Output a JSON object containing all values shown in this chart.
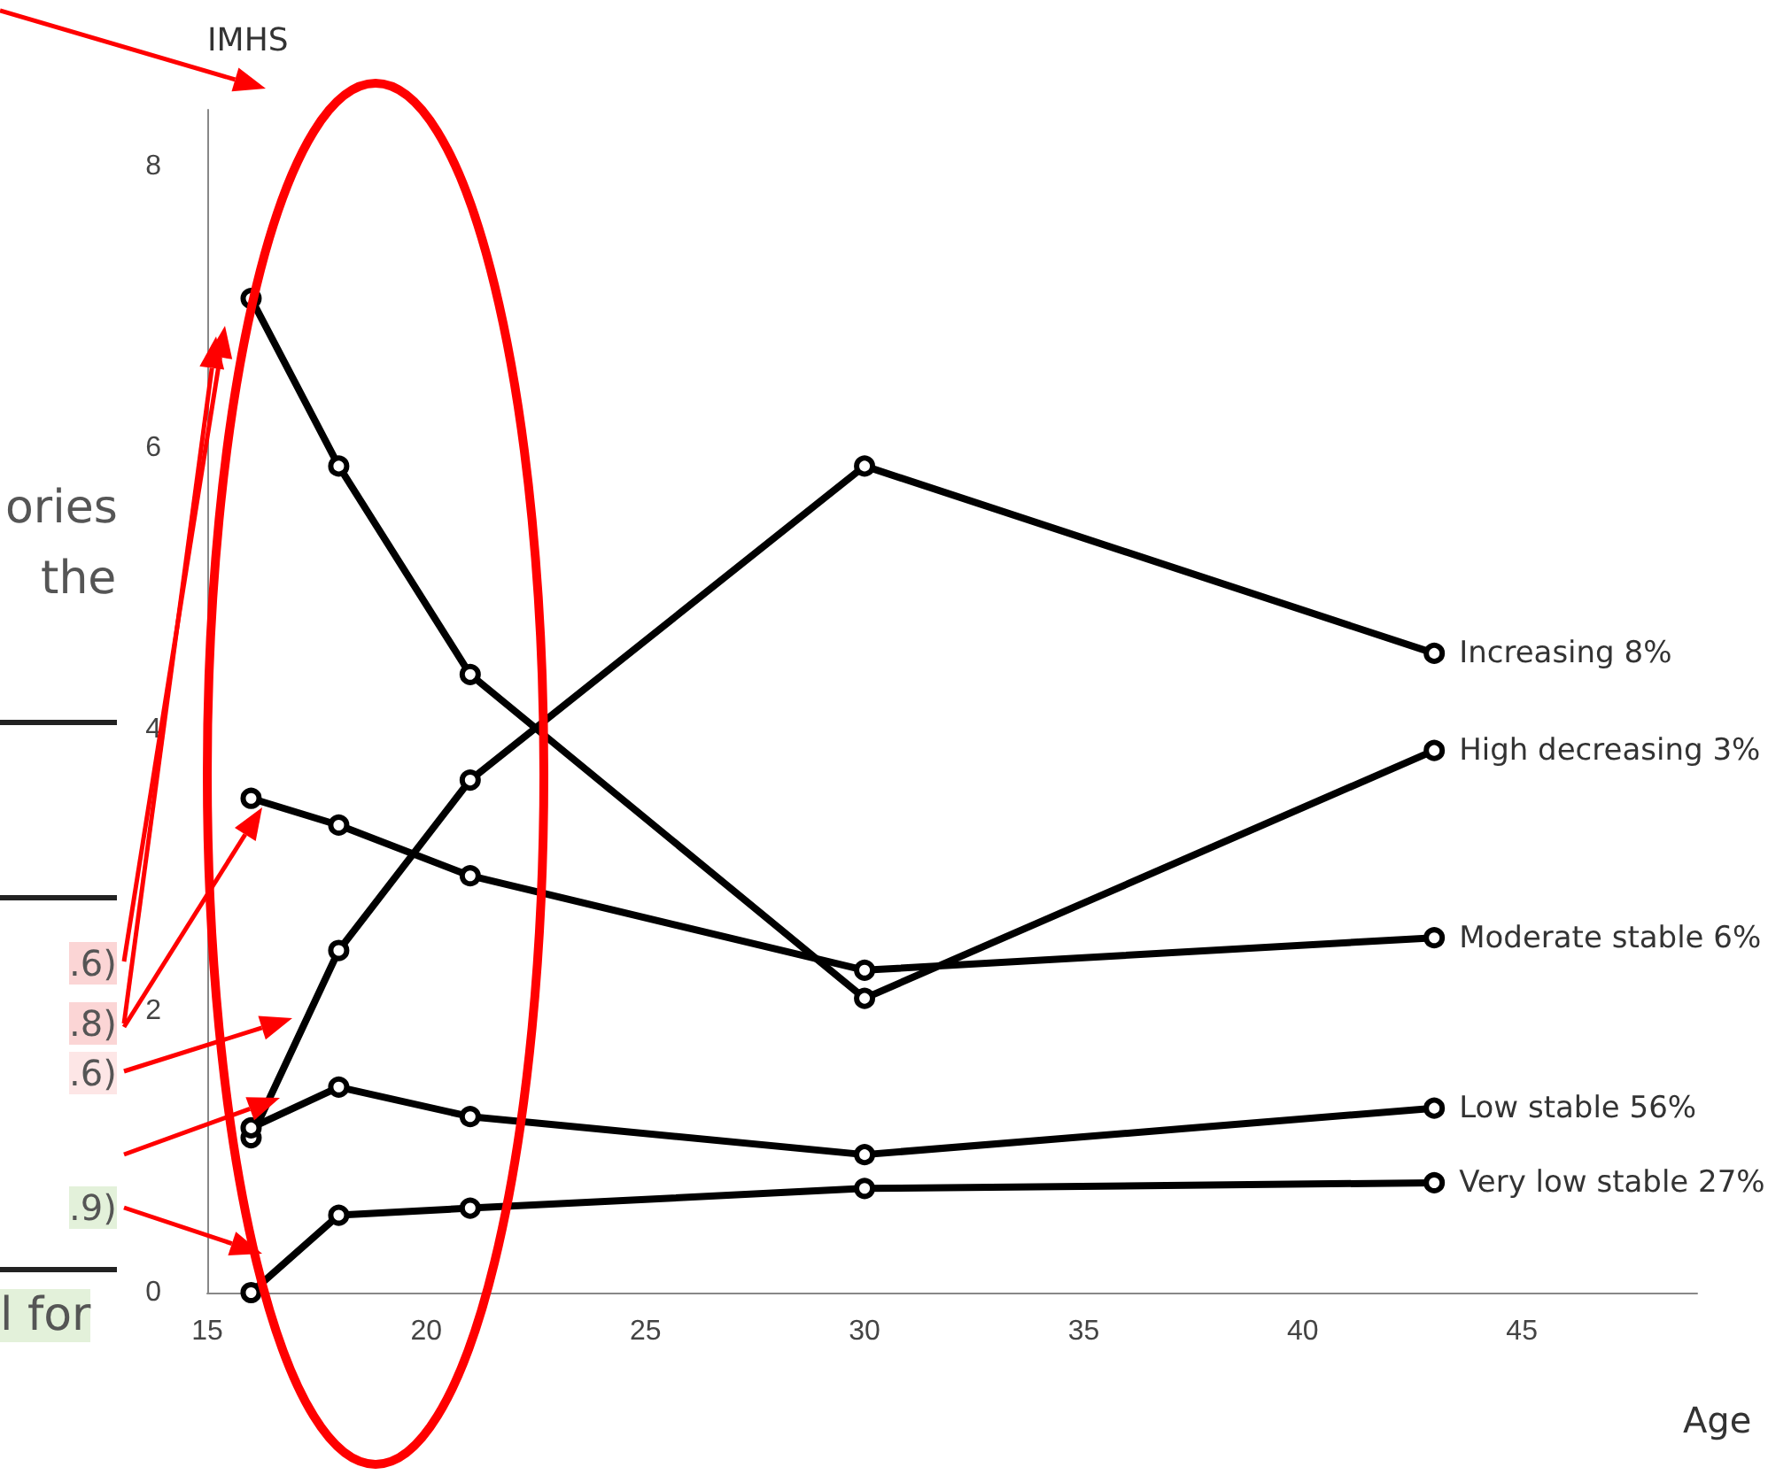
{
  "chart_data": {
    "type": "line",
    "ylabel": "IMHS",
    "xlabel": "Age",
    "x": [
      16,
      18,
      21,
      30,
      43
    ],
    "series": [
      {
        "name": "Increasing 8%",
        "color": "#000000",
        "values": [
          1.1,
          2.43,
          3.64,
          5.87,
          4.54
        ]
      },
      {
        "name": "High decreasing 3%",
        "color": "#000000",
        "values": [
          7.06,
          5.87,
          4.39,
          2.09,
          3.85
        ]
      },
      {
        "name": "Moderate stable 6%",
        "color": "#000000",
        "values": [
          3.51,
          3.32,
          2.96,
          2.29,
          2.52
        ]
      },
      {
        "name": "Low stable 56%",
        "color": "#000000",
        "values": [
          1.17,
          1.46,
          1.25,
          0.98,
          1.31
        ]
      },
      {
        "name": "Very low stable 27%",
        "color": "#000000",
        "values": [
          0,
          0.55,
          0.6,
          0.74,
          0.78
        ]
      }
    ],
    "xlim": [
      15,
      49
    ],
    "xticks": [
      15,
      20,
      25,
      30,
      35,
      40,
      45
    ],
    "ylim": [
      0,
      8.4
    ],
    "yticks": [
      0,
      2,
      4,
      6,
      8
    ],
    "grid": false,
    "legend": false,
    "marker": "circle",
    "line_style": "solid",
    "annotations": [
      "ories",
      "the",
      ".6)",
      ".8)",
      ".6)",
      ".9)",
      "l  for"
    ]
  }
}
